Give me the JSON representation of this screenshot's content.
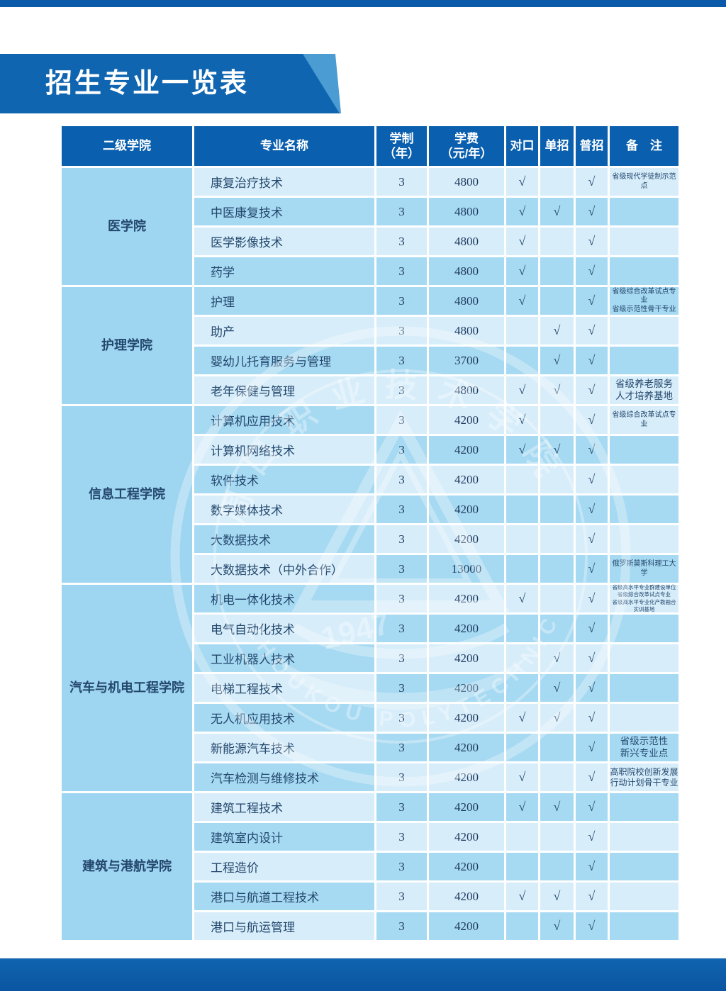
{
  "page": {
    "title": "招生专业一览表",
    "watermark": {
      "cn": "周口职业技术学院",
      "en": "ZHOUKOU  POLYTECHNIC",
      "year": "1947"
    }
  },
  "colors": {
    "bar_blue": "#0b5aa9",
    "banner_blue": "#0f65af",
    "banner_accent": "#4a9cd2",
    "header_blue": "#0a5fae",
    "row_light": "#d7edfa",
    "row_dark": "#a6d9f2",
    "college_cell": "#9ed5f0",
    "text_navy": "#24486d"
  },
  "table": {
    "check_glyph": "√",
    "headers": [
      {
        "id": "college",
        "lines": [
          "二级学院"
        ]
      },
      {
        "id": "name",
        "lines": [
          "专业名称"
        ]
      },
      {
        "id": "years",
        "lines": [
          "学制",
          "（年）"
        ]
      },
      {
        "id": "fee",
        "lines": [
          "学费",
          "（元/年）"
        ]
      },
      {
        "id": "duikou",
        "lines": [
          "对口"
        ]
      },
      {
        "id": "danzhao",
        "lines": [
          "单招"
        ]
      },
      {
        "id": "puzhao",
        "lines": [
          "普招"
        ]
      },
      {
        "id": "remark",
        "lines": [
          "备　注"
        ]
      }
    ],
    "groups": [
      {
        "college": [
          "医学院"
        ],
        "rows": [
          {
            "name": "康复治疗技术",
            "years": "3",
            "fee": "4800",
            "duikou": true,
            "danzhao": false,
            "puzhao": true,
            "remark": [
              "省级现代学徒制示范点"
            ],
            "remark_size": "s",
            "shade": "L",
            "name_shade": "L"
          },
          {
            "name": "中医康复技术",
            "years": "3",
            "fee": "4800",
            "duikou": true,
            "danzhao": true,
            "puzhao": true,
            "remark": [],
            "remark_size": "m",
            "shade": "D",
            "name_shade": "D"
          },
          {
            "name": "医学影像技术",
            "years": "3",
            "fee": "4800",
            "duikou": true,
            "danzhao": false,
            "puzhao": true,
            "remark": [],
            "remark_size": "m",
            "shade": "L",
            "name_shade": "L"
          },
          {
            "name": "药学",
            "years": "3",
            "fee": "4800",
            "duikou": true,
            "danzhao": false,
            "puzhao": true,
            "remark": [],
            "remark_size": "m",
            "shade": "D",
            "name_shade": "D"
          }
        ]
      },
      {
        "college": [
          "护理学院"
        ],
        "rows": [
          {
            "name": "护理",
            "years": "3",
            "fee": "4800",
            "duikou": true,
            "danzhao": false,
            "puzhao": true,
            "remark": [
              "省级综合改革试点专业",
              "省级示范性骨干专业"
            ],
            "remark_size": "s",
            "shade": "D",
            "name_shade": "D"
          },
          {
            "name": "助产",
            "years": "3",
            "fee": "4800",
            "duikou": false,
            "danzhao": true,
            "puzhao": true,
            "remark": [],
            "remark_size": "m",
            "shade": "L",
            "name_shade": "L"
          },
          {
            "name": "婴幼儿托育服务与管理",
            "years": "3",
            "fee": "3700",
            "duikou": false,
            "danzhao": true,
            "puzhao": true,
            "remark": [],
            "remark_size": "m",
            "shade": "D",
            "name_shade": "D"
          },
          {
            "name": "老年保健与管理",
            "years": "3",
            "fee": "4800",
            "duikou": true,
            "danzhao": true,
            "puzhao": true,
            "remark": [
              "省级养老服务",
              "人才培养基地"
            ],
            "remark_size": "l",
            "shade": "L",
            "name_shade": "L"
          }
        ]
      },
      {
        "college": [
          "信息工程学院"
        ],
        "rows": [
          {
            "name": "计算机应用技术",
            "years": "3",
            "fee": "4200",
            "duikou": true,
            "danzhao": false,
            "puzhao": true,
            "remark": [
              "省级综合改革试点专业"
            ],
            "remark_size": "s",
            "shade": "L",
            "name_shade": "D"
          },
          {
            "name": "计算机网络技术",
            "years": "3",
            "fee": "4200",
            "duikou": true,
            "danzhao": true,
            "puzhao": true,
            "remark": [],
            "remark_size": "m",
            "shade": "D",
            "name_shade": "L"
          },
          {
            "name": "软件技术",
            "years": "3",
            "fee": "4200",
            "duikou": false,
            "danzhao": false,
            "puzhao": true,
            "remark": [],
            "remark_size": "m",
            "shade": "L",
            "name_shade": "D"
          },
          {
            "name": "数字媒体技术",
            "years": "3",
            "fee": "4200",
            "duikou": false,
            "danzhao": false,
            "puzhao": true,
            "remark": [],
            "remark_size": "m",
            "shade": "D",
            "name_shade": "L"
          },
          {
            "name": "大数据技术",
            "years": "3",
            "fee": "4200",
            "duikou": false,
            "danzhao": false,
            "puzhao": true,
            "remark": [],
            "remark_size": "m",
            "shade": "L",
            "name_shade": "D"
          },
          {
            "name": "大数据技术（中外合作）",
            "years": "3",
            "fee": "13000",
            "duikou": false,
            "danzhao": false,
            "puzhao": true,
            "remark": [
              "俄罗斯莫斯科理工大学"
            ],
            "remark_size": "s",
            "shade": "D",
            "name_shade": "L"
          }
        ]
      },
      {
        "college": [
          "汽车与机电",
          "工程学院"
        ],
        "rows": [
          {
            "name": "机电一体化技术",
            "years": "3",
            "fee": "4200",
            "duikou": true,
            "danzhao": false,
            "puzhao": true,
            "remark": [
              "省级高水平专业群建设单位",
              "省级综合改革试点专业",
              "省级高水平专业化产教融合实训基地"
            ],
            "remark_size": "xs",
            "shade": "L",
            "name_shade": "D"
          },
          {
            "name": "电气自动化技术",
            "years": "3",
            "fee": "4200",
            "duikou": false,
            "danzhao": false,
            "puzhao": true,
            "remark": [],
            "remark_size": "m",
            "shade": "D",
            "name_shade": "L"
          },
          {
            "name": "工业机器人技术",
            "years": "3",
            "fee": "4200",
            "duikou": false,
            "danzhao": true,
            "puzhao": true,
            "remark": [],
            "remark_size": "m",
            "shade": "L",
            "name_shade": "D"
          },
          {
            "name": "电梯工程技术",
            "years": "3",
            "fee": "4200",
            "duikou": false,
            "danzhao": true,
            "puzhao": true,
            "remark": [],
            "remark_size": "m",
            "shade": "D",
            "name_shade": "L"
          },
          {
            "name": "无人机应用技术",
            "years": "3",
            "fee": "4200",
            "duikou": true,
            "danzhao": true,
            "puzhao": true,
            "remark": [],
            "remark_size": "m",
            "shade": "L",
            "name_shade": "D"
          },
          {
            "name": "新能源汽车技术",
            "years": "3",
            "fee": "4200",
            "duikou": false,
            "danzhao": false,
            "puzhao": true,
            "remark": [
              "省级示范性",
              "新兴专业点"
            ],
            "remark_size": "l",
            "shade": "D",
            "name_shade": "L"
          },
          {
            "name": "汽车检测与维修技术",
            "years": "3",
            "fee": "4200",
            "duikou": true,
            "danzhao": false,
            "puzhao": true,
            "remark": [
              "高职院校创新发展",
              "行动计划骨干专业"
            ],
            "remark_size": "m",
            "shade": "L",
            "name_shade": "D"
          }
        ]
      },
      {
        "college": [
          "建筑与港航学院"
        ],
        "rows": [
          {
            "name": "建筑工程技术",
            "years": "3",
            "fee": "4200",
            "duikou": true,
            "danzhao": true,
            "puzhao": true,
            "remark": [],
            "remark_size": "m",
            "shade": "D",
            "name_shade": "L"
          },
          {
            "name": "建筑室内设计",
            "years": "3",
            "fee": "4200",
            "duikou": false,
            "danzhao": false,
            "puzhao": true,
            "remark": [],
            "remark_size": "m",
            "shade": "L",
            "name_shade": "D"
          },
          {
            "name": "工程造价",
            "years": "3",
            "fee": "4200",
            "duikou": false,
            "danzhao": false,
            "puzhao": true,
            "remark": [],
            "remark_size": "m",
            "shade": "D",
            "name_shade": "L"
          },
          {
            "name": "港口与航道工程技术",
            "years": "3",
            "fee": "4200",
            "duikou": true,
            "danzhao": true,
            "puzhao": true,
            "remark": [],
            "remark_size": "m",
            "shade": "L",
            "name_shade": "D"
          },
          {
            "name": "港口与航运管理",
            "years": "3",
            "fee": "4200",
            "duikou": false,
            "danzhao": true,
            "puzhao": true,
            "remark": [],
            "remark_size": "m",
            "shade": "D",
            "name_shade": "L"
          }
        ]
      }
    ]
  }
}
